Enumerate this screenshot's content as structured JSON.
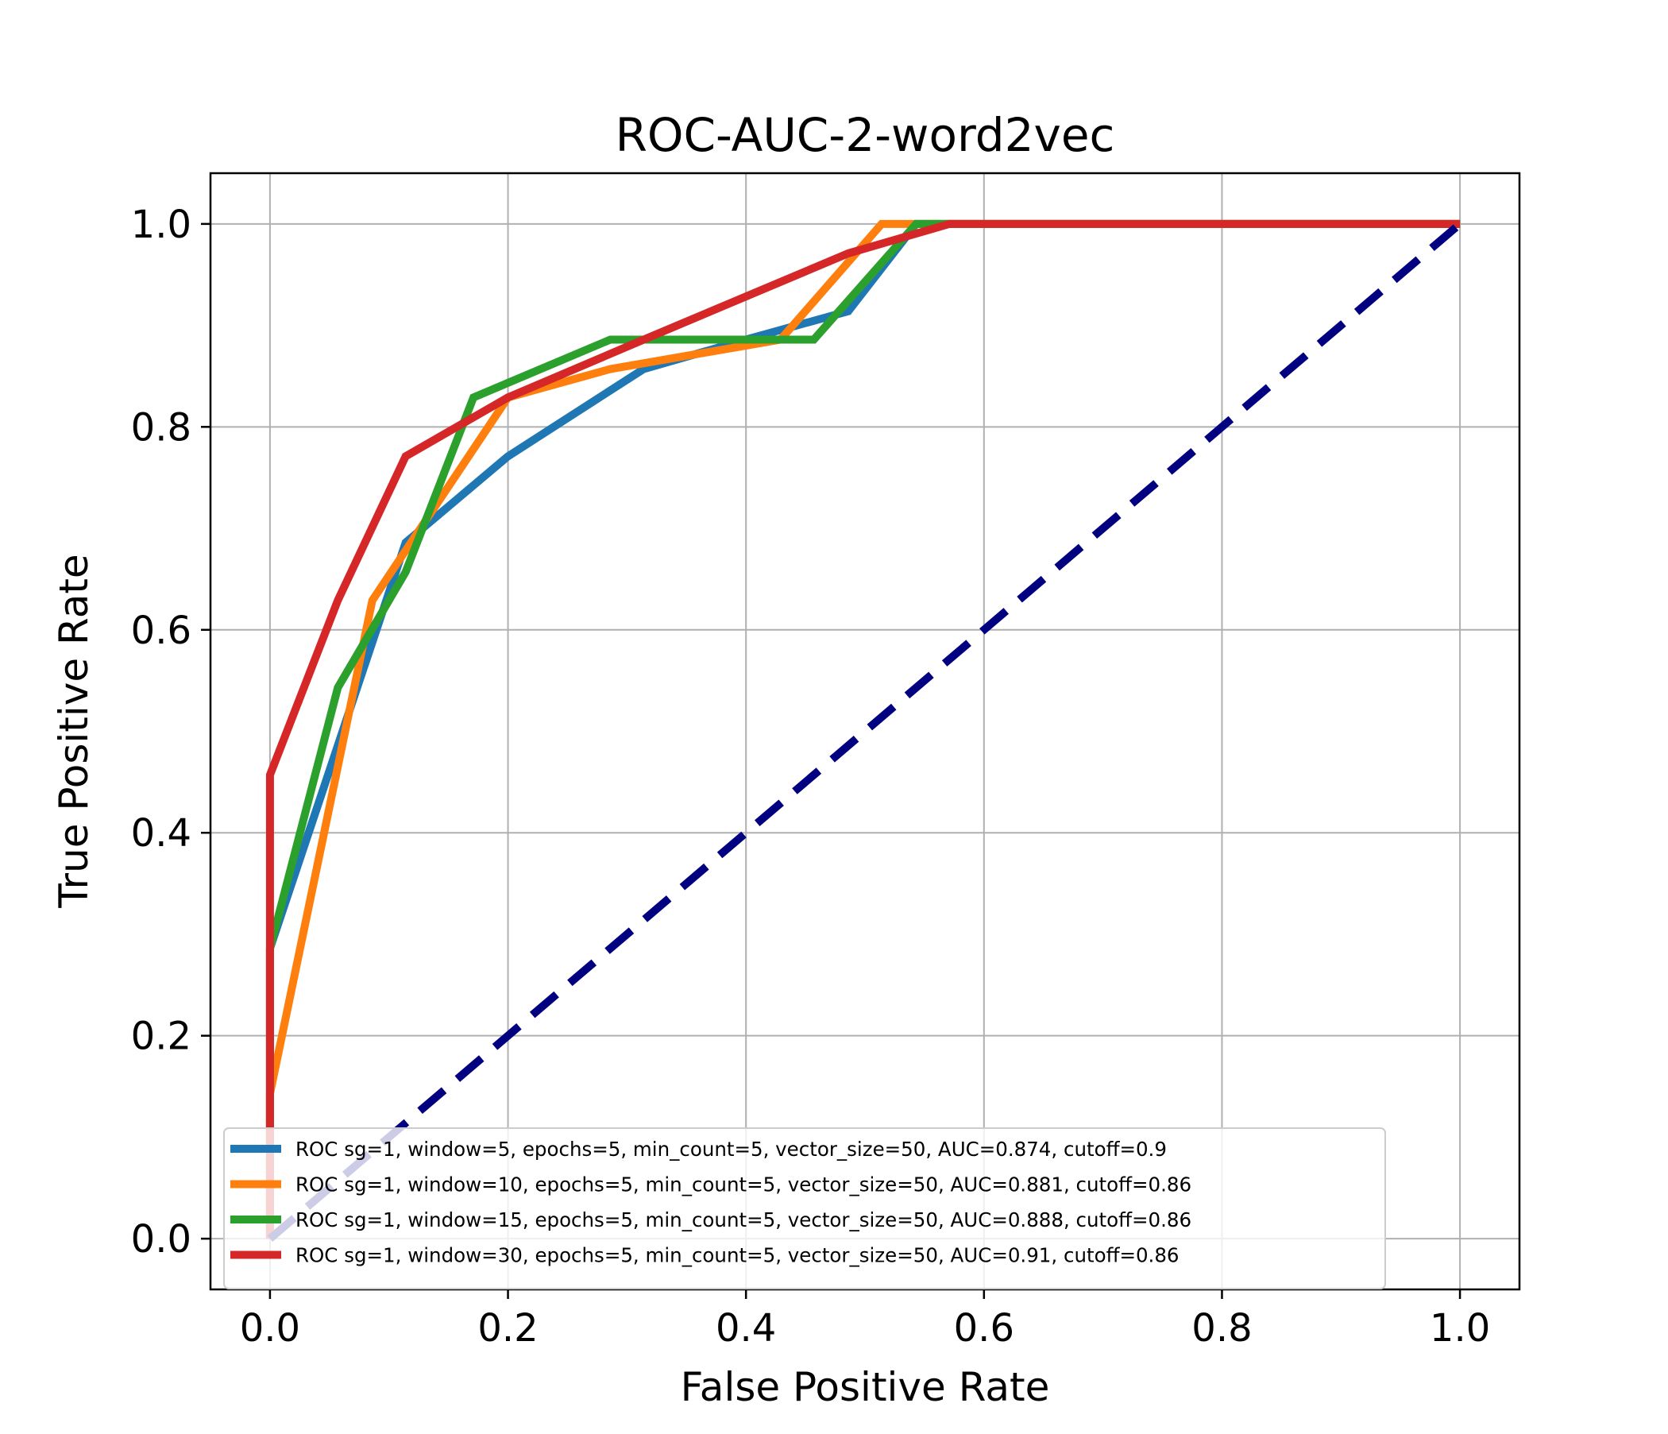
{
  "chart_data": {
    "type": "line",
    "title": "ROC-AUC-2-word2vec",
    "xlabel": "False Positive Rate",
    "ylabel": "True Positive Rate",
    "xlim": [
      -0.05,
      1.05
    ],
    "ylim": [
      -0.05,
      1.05
    ],
    "xticks": [
      "0.0",
      "0.2",
      "0.4",
      "0.6",
      "0.8",
      "1.0"
    ],
    "yticks": [
      "0.0",
      "0.2",
      "0.4",
      "0.6",
      "0.8",
      "1.0"
    ],
    "grid": true,
    "legend_position": "lower-left",
    "series": [
      {
        "name": "ROC sg=1, window=5, epochs=5, min_count=5, vector_size=50, AUC=0.874, cutoff=0.9",
        "color": "#1f77b4",
        "x": [
          0.0,
          0.0,
          0.114,
          0.2,
          0.314,
          0.4,
          0.486,
          0.543,
          1.0
        ],
        "y": [
          0.0,
          0.286,
          0.686,
          0.771,
          0.857,
          0.886,
          0.914,
          1.0,
          1.0
        ]
      },
      {
        "name": "ROC sg=1, window=10, epochs=5, min_count=5, vector_size=50, AUC=0.881, cutoff=0.86",
        "color": "#ff7f0e",
        "x": [
          0.0,
          0.0,
          0.086,
          0.2,
          0.286,
          0.429,
          0.514,
          1.0
        ],
        "y": [
          0.0,
          0.143,
          0.629,
          0.829,
          0.857,
          0.886,
          1.0,
          1.0
        ]
      },
      {
        "name": "ROC sg=1, window=15, epochs=5, min_count=5, vector_size=50, AUC=0.888, cutoff=0.86",
        "color": "#2ca02c",
        "x": [
          0.0,
          0.0,
          0.057,
          0.114,
          0.171,
          0.286,
          0.457,
          0.543,
          1.0
        ],
        "y": [
          0.0,
          0.286,
          0.543,
          0.657,
          0.829,
          0.886,
          0.886,
          1.0,
          1.0
        ]
      },
      {
        "name": "ROC sg=1, window=30, epochs=5, min_count=5, vector_size=50, AUC=0.91, cutoff=0.86",
        "color": "#d62728",
        "x": [
          0.0,
          0.0,
          0.057,
          0.114,
          0.2,
          0.314,
          0.486,
          0.571,
          1.0
        ],
        "y": [
          0.0,
          0.457,
          0.629,
          0.771,
          0.829,
          0.886,
          0.971,
          1.0,
          1.0
        ]
      }
    ],
    "reference_line": {
      "color": "#000080",
      "style": "dashed",
      "x": [
        0.0,
        1.0
      ],
      "y": [
        0.0,
        1.0
      ]
    }
  }
}
